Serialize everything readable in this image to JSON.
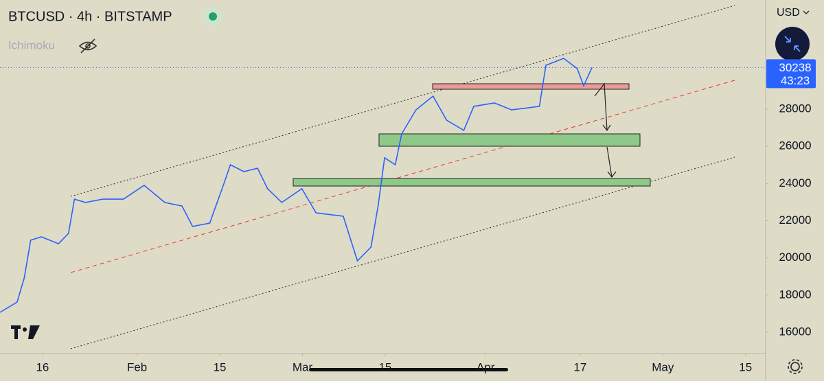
{
  "chart_data": {
    "type": "line",
    "title": "BTCUSD · 4h · BITSTAMP",
    "indicator": "Ichimoku",
    "currency": "USD",
    "last_price": 30238,
    "countdown": "43:23",
    "color": "#2962ff",
    "x": [
      8.8,
      11.7,
      12.9,
      14.0,
      15.8,
      18.7,
      20.4,
      21.4,
      23.3,
      26.2,
      29.7,
      33.2,
      36.7,
      39.6,
      41.4,
      44.3,
      46.6,
      47.8,
      50.1,
      52.4,
      54.1,
      56.5,
      59.9,
      62.3,
      66.9,
      69.3,
      71.6,
      72.8,
      73.9,
      75.7,
      76.8,
      79.2,
      82.1,
      84.4,
      87.3,
      89.0,
      92.5,
      95.4,
      100.1,
      101.2,
      104.2,
      106.5,
      107.6,
      109.0
    ],
    "values": [
      17070,
      17620,
      18920,
      20950,
      21130,
      20760,
      21320,
      23160,
      22980,
      23160,
      23160,
      23900,
      22980,
      22790,
      21690,
      21870,
      23900,
      25010,
      24640,
      24820,
      23720,
      22980,
      23720,
      22420,
      22240,
      19840,
      20580,
      22790,
      25380,
      25010,
      26670,
      27960,
      28700,
      27410,
      26860,
      28150,
      28330,
      27960,
      28150,
      30360,
      30730,
      30180,
      29260,
      30238
    ],
    "xlim": [
      8.8,
      138.4
    ],
    "xticks": [
      {
        "value": 16,
        "label": "16"
      },
      {
        "value": 32,
        "label": "Feb"
      },
      {
        "value": 46,
        "label": "15"
      },
      {
        "value": 60,
        "label": "Mar"
      },
      {
        "value": 74,
        "label": "15"
      },
      {
        "value": 91,
        "label": "Apr"
      },
      {
        "value": 107,
        "label": "17"
      },
      {
        "value": 121,
        "label": "May"
      },
      {
        "value": 135,
        "label": "15"
      }
    ],
    "ylim": [
      14855,
      33870
    ],
    "yticks": [
      16000,
      18000,
      20000,
      22000,
      24000,
      26000,
      28000
    ]
  }
}
